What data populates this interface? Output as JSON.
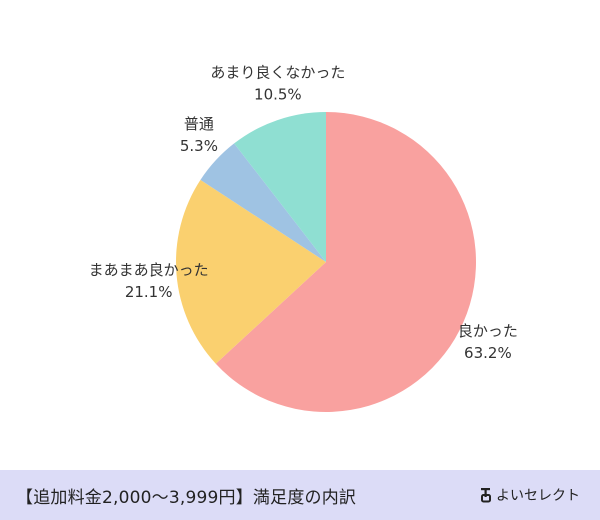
{
  "chart_data": {
    "type": "pie",
    "slices": [
      {
        "label": "良かった",
        "value": 63.2,
        "value_label": "63.2%",
        "color": "#f9a19f"
      },
      {
        "label": "まあまあ良かった",
        "value": 21.1,
        "value_label": "21.1%",
        "color": "#fad06f"
      },
      {
        "label": "普通",
        "value": 5.3,
        "value_label": "5.3%",
        "color": "#9fc3e3"
      },
      {
        "label": "あまり良くなかった",
        "value": 10.5,
        "value_label": "10.5%",
        "color": "#8fdfd2"
      }
    ],
    "start": "top",
    "direction": "clockwise"
  },
  "footer": {
    "caption": "【追加料金2,000〜3,999円】満足度の内訳",
    "brand": "よいセレクト",
    "background": "#dcdcf7"
  }
}
